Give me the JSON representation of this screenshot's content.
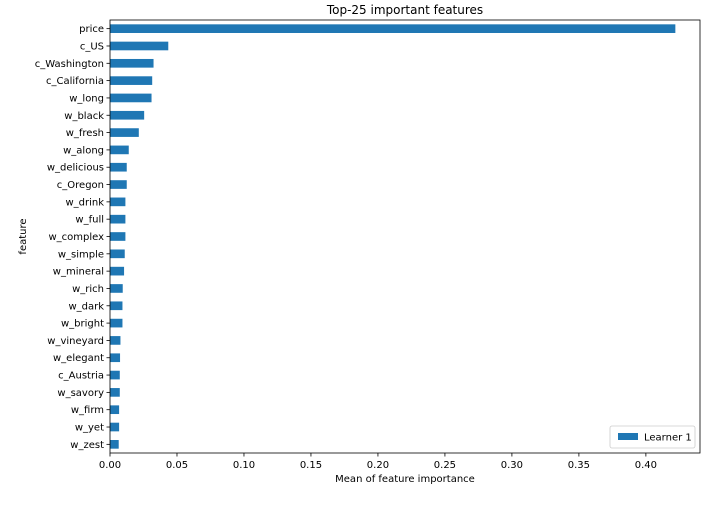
{
  "chart_data": {
    "type": "bar",
    "orientation": "horizontal",
    "title": "Top-25 important features",
    "xlabel": "Mean of feature importance",
    "ylabel": "feature",
    "xlim": [
      0.0,
      0.4404
    ],
    "xticks": [
      "0.00",
      "0.05",
      "0.10",
      "0.15",
      "0.20",
      "0.25",
      "0.30",
      "0.35",
      "0.40"
    ],
    "categories": [
      "price",
      "c_US",
      "c_Washington",
      "c_California",
      "w_long",
      "w_black",
      "w_fresh",
      "w_along",
      "w_delicious",
      "c_Oregon",
      "w_drink",
      "w_full",
      "w_complex",
      "w_simple",
      "w_mineral",
      "w_rich",
      "w_dark",
      "w_bright",
      "w_vineyard",
      "w_elegant",
      "c_Austria",
      "w_savory",
      "w_firm",
      "w_yet",
      "w_zest"
    ],
    "series": [
      {
        "name": "Learner 1",
        "color": "#1f77b4",
        "values": [
          0.422,
          0.0435,
          0.0325,
          0.0315,
          0.031,
          0.0255,
          0.0215,
          0.014,
          0.0125,
          0.0125,
          0.0115,
          0.0115,
          0.0115,
          0.011,
          0.0105,
          0.0095,
          0.0093,
          0.0093,
          0.0078,
          0.0075,
          0.0073,
          0.0073,
          0.0068,
          0.0068,
          0.0065
        ]
      }
    ],
    "grid": false,
    "legend_position": "lower-right"
  }
}
